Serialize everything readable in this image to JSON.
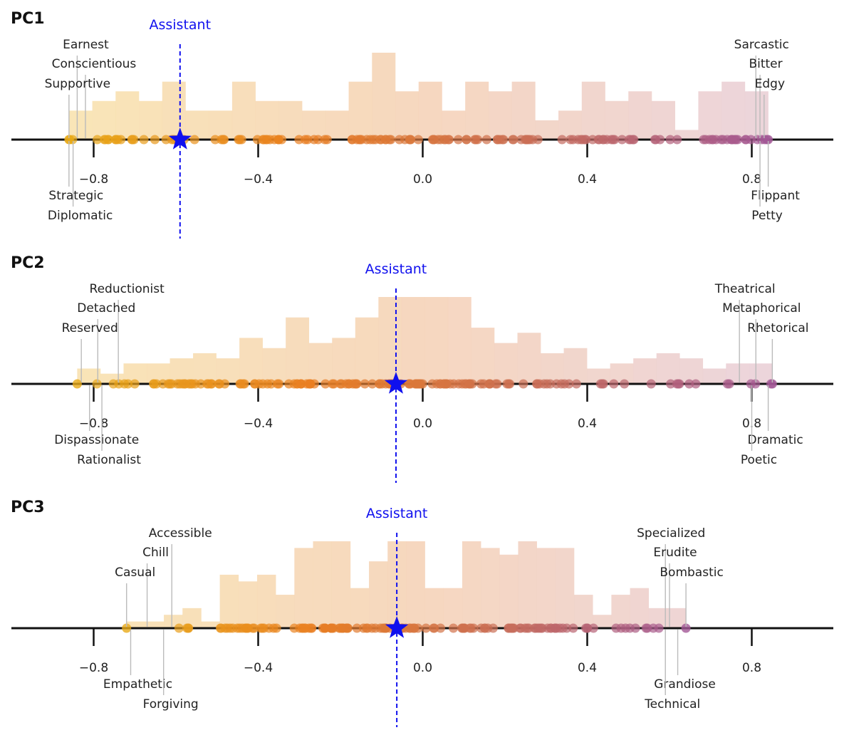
{
  "chart_data": {
    "type": "strip-histogram",
    "xlim": [
      -1.0,
      1.0
    ],
    "ticks": [
      -0.8,
      -0.4,
      0.0,
      0.4,
      0.8
    ],
    "tick_labels": [
      "−0.8",
      "−0.4",
      "0.0",
      "0.4",
      "0.8"
    ],
    "colors": {
      "axis": "#111111",
      "assistant": "#1010ee",
      "gradient_light": [
        "#f9e3a8",
        "#f5d0b4",
        "#e6cddc"
      ],
      "gradient_dots": [
        "#e8aa18",
        "#e97f22",
        "#c96e58",
        "#a35896"
      ]
    },
    "panels": [
      {
        "title": "PC1",
        "assistant_label": "Assistant",
        "assistant_x": -0.59,
        "range": [
          -0.86,
          0.84
        ],
        "hist_counts": [
          3,
          4,
          5,
          4,
          6,
          3,
          3,
          6,
          4,
          4,
          3,
          3,
          6,
          9,
          5,
          6,
          3,
          6,
          5,
          6,
          2,
          3,
          6,
          4,
          5,
          4,
          1,
          5,
          6,
          5
        ],
        "dot_seed": 11,
        "dot_count": 150,
        "labels_top": [
          {
            "text": "Earnest",
            "x": -0.84
          },
          {
            "text": "Conscientious",
            "x": -0.82
          },
          {
            "text": "Supportive",
            "x": -0.86
          }
        ],
        "labels_bottom": [
          {
            "text": "Strategic",
            "x": -0.86
          },
          {
            "text": "Diplomatic",
            "x": -0.85
          }
        ],
        "labels_top_right": [
          {
            "text": "Sarcastic",
            "x": 0.81
          },
          {
            "text": "Bitter",
            "x": 0.82
          },
          {
            "text": "Edgy",
            "x": 0.83
          }
        ],
        "labels_bottom_right": [
          {
            "text": "Flippant",
            "x": 0.84
          },
          {
            "text": "Petty",
            "x": 0.82
          }
        ]
      },
      {
        "title": "PC2",
        "assistant_label": "Assistant",
        "assistant_x": -0.065,
        "range": [
          -0.84,
          0.85
        ],
        "hist_counts": [
          3,
          2,
          4,
          4,
          5,
          6,
          5,
          9,
          7,
          13,
          8,
          9,
          13,
          17,
          17,
          17,
          17,
          11,
          8,
          10,
          6,
          7,
          3,
          4,
          5,
          6,
          5,
          3,
          4,
          4
        ],
        "dot_seed": 23,
        "dot_count": 150,
        "labels_top": [
          {
            "text": "Reductionist",
            "x": -0.74
          },
          {
            "text": "Detached",
            "x": -0.79
          },
          {
            "text": "Reserved",
            "x": -0.83
          }
        ],
        "labels_bottom": [
          {
            "text": "Dispassionate",
            "x": -0.81
          },
          {
            "text": "Rationalist",
            "x": -0.78
          }
        ],
        "labels_top_right": [
          {
            "text": "Theatrical",
            "x": 0.77
          },
          {
            "text": "Metaphorical",
            "x": 0.81
          },
          {
            "text": "Rhetorical",
            "x": 0.85
          }
        ],
        "labels_bottom_right": [
          {
            "text": "Dramatic",
            "x": 0.84
          },
          {
            "text": "Poetic",
            "x": 0.8
          }
        ]
      },
      {
        "title": "PC3",
        "assistant_label": "Assistant",
        "assistant_x": -0.063,
        "range": [
          -0.72,
          0.64
        ],
        "hist_counts": [
          1,
          1,
          2,
          3,
          1,
          8,
          7,
          8,
          5,
          12,
          13,
          13,
          6,
          10,
          13,
          13,
          6,
          6,
          13,
          12,
          11,
          13,
          12,
          12,
          5,
          2,
          5,
          6,
          3,
          3
        ],
        "dot_seed": 37,
        "dot_count": 140,
        "labels_top": [
          {
            "text": "Accessible",
            "x": -0.61
          },
          {
            "text": "Chill",
            "x": -0.67
          },
          {
            "text": "Casual",
            "x": -0.72
          }
        ],
        "labels_bottom": [
          {
            "text": "Empathetic",
            "x": -0.71
          },
          {
            "text": "Forgiving",
            "x": -0.63
          }
        ],
        "labels_top_right": [
          {
            "text": "Specialized",
            "x": 0.59
          },
          {
            "text": "Erudite",
            "x": 0.6
          },
          {
            "text": "Bombastic",
            "x": 0.64
          }
        ],
        "labels_bottom_right": [
          {
            "text": "Grandiose",
            "x": 0.62
          },
          {
            "text": "Technical",
            "x": 0.59
          }
        ]
      }
    ]
  }
}
